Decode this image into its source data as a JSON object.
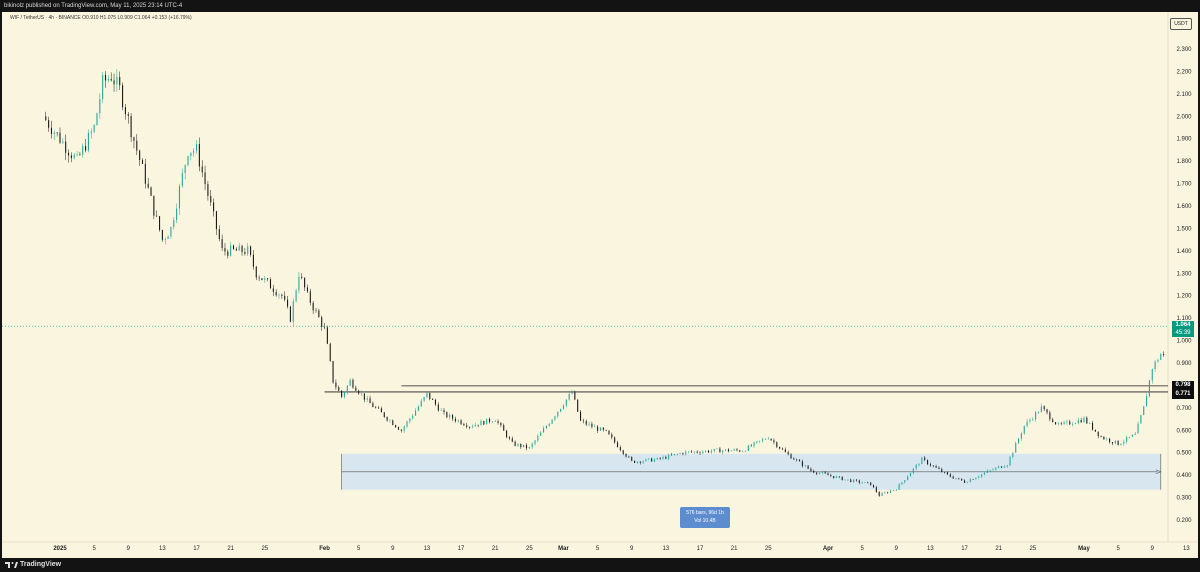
{
  "header": {
    "publisher_text": "bikinolz published on TradingView.com, May 11, 2025 23:14 UTC-4"
  },
  "legend": {
    "text": "WIF / TetherUS · 4h · BINANCE   O0.910  H1.075  L0.909  C1.064  +0.153 (+16.79%)"
  },
  "unit_label": "USDT",
  "brand": {
    "name": "TradingView"
  },
  "colors": {
    "background": "#faf5df",
    "up": "#26a69a",
    "down": "#1a1a1a",
    "range_fill": "#cfe2f3",
    "range_label_bg": "#5d8ccf",
    "price_badge": "#089981"
  },
  "badges": {
    "current_price": "1.064",
    "countdown": "45:39",
    "level_upper": "0.798",
    "level_lower": "0.771"
  },
  "range_measure": {
    "line1": "576 bars, 96d 1h",
    "line2": "Vol 10.4B"
  },
  "chart_data": {
    "type": "candlestick",
    "symbol": "WIF / TetherUS",
    "timeframe": "4h",
    "exchange": "BINANCE",
    "ohlc_last": {
      "open": 0.91,
      "high": 1.075,
      "low": 0.909,
      "close": 1.064,
      "change": 0.153,
      "change_pct": "+16.79%"
    },
    "y_axis": {
      "min": 0.12,
      "max": 2.4,
      "ticks": [
        "2.300",
        "2.200",
        "2.100",
        "2.000",
        "1.900",
        "1.800",
        "1.700",
        "1.600",
        "1.500",
        "1.400",
        "1.300",
        "1.200",
        "1.100",
        "1.000",
        "0.900",
        "0.800",
        "0.700",
        "0.600",
        "0.500",
        "0.400",
        "0.300",
        "0.200"
      ]
    },
    "x_axis": {
      "ticks": [
        "2025",
        "5",
        "9",
        "13",
        "17",
        "21",
        "25",
        "Feb",
        "5",
        "9",
        "13",
        "17",
        "21",
        "25",
        "Mar",
        "5",
        "9",
        "13",
        "17",
        "21",
        "25",
        "Apr",
        "5",
        "9",
        "13",
        "17",
        "21",
        "25",
        "May",
        "5",
        "9",
        "13",
        "17"
      ]
    },
    "price_path": [
      [
        "2024-12-30",
        2.0
      ],
      [
        "2025-01-01",
        1.9
      ],
      [
        "2025-01-03",
        1.8
      ],
      [
        "2025-01-05",
        1.95
      ],
      [
        "2025-01-06",
        2.15
      ],
      [
        "2025-01-07",
        2.18
      ],
      [
        "2025-01-08",
        2.12
      ],
      [
        "2025-01-10",
        1.85
      ],
      [
        "2025-01-11",
        1.72
      ],
      [
        "2025-01-12",
        1.58
      ],
      [
        "2025-01-13",
        1.45
      ],
      [
        "2025-01-14",
        1.5
      ],
      [
        "2025-01-16",
        1.85
      ],
      [
        "2025-01-17",
        1.85
      ],
      [
        "2025-01-19",
        1.55
      ],
      [
        "2025-01-20",
        1.4
      ],
      [
        "2025-01-23",
        1.4
      ],
      [
        "2025-01-24",
        1.3
      ],
      [
        "2025-01-27",
        1.2
      ],
      [
        "2025-01-28",
        1.1
      ],
      [
        "2025-01-29",
        1.3
      ],
      [
        "2025-01-30",
        1.2
      ],
      [
        "2025-02-01",
        1.05
      ],
      [
        "2025-02-02",
        0.82
      ],
      [
        "2025-02-03",
        0.75
      ],
      [
        "2025-02-04",
        0.82
      ],
      [
        "2025-02-06",
        0.73
      ],
      [
        "2025-02-10",
        0.6
      ],
      [
        "2025-02-13",
        0.76
      ],
      [
        "2025-02-15",
        0.67
      ],
      [
        "2025-02-18",
        0.62
      ],
      [
        "2025-02-21",
        0.65
      ],
      [
        "2025-02-23",
        0.54
      ],
      [
        "2025-02-25",
        0.52
      ],
      [
        "2025-02-27",
        0.62
      ],
      [
        "2025-03-02",
        0.77
      ],
      [
        "2025-03-03",
        0.64
      ],
      [
        "2025-03-06",
        0.59
      ],
      [
        "2025-03-09",
        0.46
      ],
      [
        "2025-03-12",
        0.47
      ],
      [
        "2025-03-15",
        0.5
      ],
      [
        "2025-03-19",
        0.51
      ],
      [
        "2025-03-22",
        0.51
      ],
      [
        "2025-03-25",
        0.57
      ],
      [
        "2025-03-27",
        0.5
      ],
      [
        "2025-03-30",
        0.42
      ],
      [
        "2025-04-03",
        0.38
      ],
      [
        "2025-04-06",
        0.36
      ],
      [
        "2025-04-07",
        0.31
      ],
      [
        "2025-04-09",
        0.34
      ],
      [
        "2025-04-12",
        0.47
      ],
      [
        "2025-04-15",
        0.4
      ],
      [
        "2025-04-17",
        0.37
      ],
      [
        "2025-04-20",
        0.42
      ],
      [
        "2025-04-22",
        0.45
      ],
      [
        "2025-04-24",
        0.62
      ],
      [
        "2025-04-26",
        0.7
      ],
      [
        "2025-04-28",
        0.62
      ],
      [
        "2025-05-01",
        0.65
      ],
      [
        "2025-05-03",
        0.57
      ],
      [
        "2025-05-05",
        0.54
      ],
      [
        "2025-05-07",
        0.58
      ],
      [
        "2025-05-08",
        0.7
      ],
      [
        "2025-05-09",
        0.88
      ],
      [
        "2025-05-10",
        0.94
      ],
      [
        "2025-05-11",
        0.91
      ],
      [
        "2025-05-12",
        1.064
      ]
    ],
    "horizontal_lines": [
      0.798,
      0.771
    ],
    "last_price_line": 1.064,
    "range_zone": {
      "from": "2025-02-03",
      "to": "2025-05-10",
      "low": 0.335,
      "high": 0.495
    },
    "grid": false,
    "legend_placement": "top-left"
  }
}
